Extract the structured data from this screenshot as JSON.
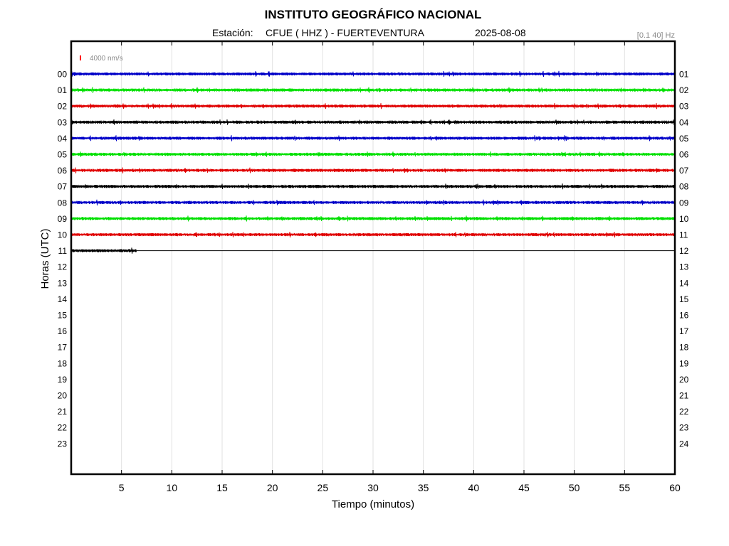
{
  "header": {
    "title": "INSTITUTO GEOGRÁFICO NACIONAL",
    "station_prefix": "Estación:",
    "station": "CFUE ( HHZ ) - FUERTEVENTURA",
    "date": "2025-08-08",
    "filter": "[0.1 40] Hz"
  },
  "scale": {
    "label": "4000 nm/s",
    "color": "#ff0000"
  },
  "chart_data": {
    "type": "line",
    "xlabel": "Tiempo (minutos)",
    "ylabel": "Horas (UTC)",
    "xlim": [
      0,
      60
    ],
    "xticks": [
      "5",
      "10",
      "15",
      "20",
      "25",
      "30",
      "35",
      "40",
      "45",
      "50",
      "55",
      "60"
    ],
    "grid": true,
    "left_hour_labels": [
      "00",
      "01",
      "02",
      "03",
      "04",
      "05",
      "06",
      "07",
      "08",
      "09",
      "10",
      "11",
      "12",
      "13",
      "14",
      "15",
      "16",
      "17",
      "18",
      "19",
      "20",
      "21",
      "22",
      "23"
    ],
    "right_hour_labels": [
      "01",
      "02",
      "03",
      "04",
      "05",
      "06",
      "07",
      "08",
      "09",
      "10",
      "11",
      "12",
      "13",
      "14",
      "15",
      "16",
      "17",
      "18",
      "19",
      "20",
      "21",
      "22",
      "23",
      "24"
    ],
    "trace_colors": [
      "#0000c8",
      "#00e000",
      "#e00000",
      "#000000"
    ],
    "traces": [
      {
        "hour": "00",
        "end_minute": 60
      },
      {
        "hour": "01",
        "end_minute": 60
      },
      {
        "hour": "02",
        "end_minute": 60
      },
      {
        "hour": "03",
        "end_minute": 60
      },
      {
        "hour": "04",
        "end_minute": 60
      },
      {
        "hour": "05",
        "end_minute": 60
      },
      {
        "hour": "06",
        "end_minute": 60
      },
      {
        "hour": "07",
        "end_minute": 60
      },
      {
        "hour": "08",
        "end_minute": 60
      },
      {
        "hour": "09",
        "end_minute": 60
      },
      {
        "hour": "10",
        "end_minute": 60
      },
      {
        "hour": "11",
        "end_minute": 6.5
      }
    ]
  }
}
